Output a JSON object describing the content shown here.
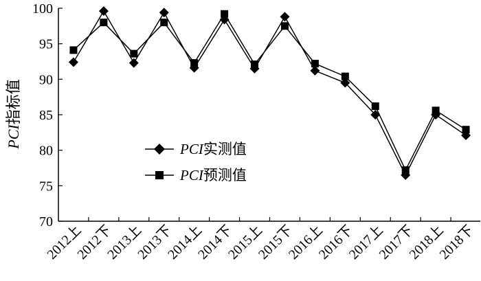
{
  "chart_data": {
    "type": "line",
    "title": "",
    "xlabel": "",
    "ylabel": {
      "italic": "PCI",
      "rest": "指标值"
    },
    "ylim": [
      70,
      100
    ],
    "yticks": [
      70,
      75,
      80,
      85,
      90,
      95,
      100
    ],
    "categories": [
      "2012上",
      "2012下",
      "2013上",
      "2013下",
      "2014上",
      "2014下",
      "2015上",
      "2015下",
      "2016上",
      "2016下",
      "2017上",
      "2017下",
      "2018上",
      "2018下"
    ],
    "series": [
      {
        "name": {
          "italic": "PCI",
          "rest": "实测值"
        },
        "marker": "diamond",
        "values": [
          92.4,
          99.6,
          92.3,
          99.4,
          91.6,
          98.4,
          91.5,
          98.8,
          91.2,
          89.5,
          85.0,
          76.5,
          85.0,
          82.1
        ]
      },
      {
        "name": {
          "italic": "PCI",
          "rest": "预测值"
        },
        "marker": "square",
        "values": [
          94.1,
          98.0,
          93.6,
          98.0,
          92.3,
          99.2,
          92.1,
          97.5,
          92.2,
          90.4,
          86.2,
          77.2,
          85.6,
          82.9
        ]
      }
    ],
    "legend": "center-left",
    "grid": false
  }
}
